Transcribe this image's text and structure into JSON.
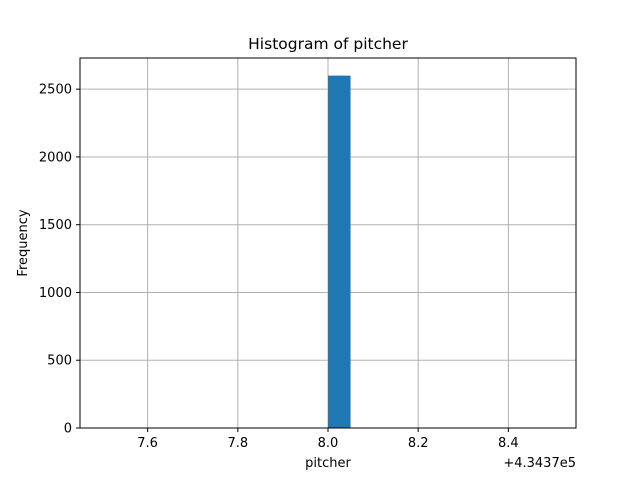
{
  "chart_data": {
    "type": "bar",
    "title": "Histogram of pitcher",
    "xlabel": "pitcher",
    "ylabel": "Frequency",
    "offset_label": "+4.3437e5",
    "xlim": [
      7.45,
      8.55
    ],
    "ylim": [
      0,
      2730
    ],
    "grid": true,
    "bins": [
      {
        "x0": 8.0,
        "x1": 8.05,
        "count": 2600
      }
    ],
    "xticks": [
      {
        "value": 7.6,
        "label": "7.6"
      },
      {
        "value": 7.8,
        "label": "7.8"
      },
      {
        "value": 8.0,
        "label": "8.0"
      },
      {
        "value": 8.2,
        "label": "8.2"
      },
      {
        "value": 8.4,
        "label": "8.4"
      }
    ],
    "yticks": [
      {
        "value": 0,
        "label": "0"
      },
      {
        "value": 500,
        "label": "500"
      },
      {
        "value": 1000,
        "label": "1000"
      },
      {
        "value": 1500,
        "label": "1500"
      },
      {
        "value": 2000,
        "label": "2000"
      },
      {
        "value": 2500,
        "label": "2500"
      }
    ],
    "bar_color": "#1f77b4"
  }
}
